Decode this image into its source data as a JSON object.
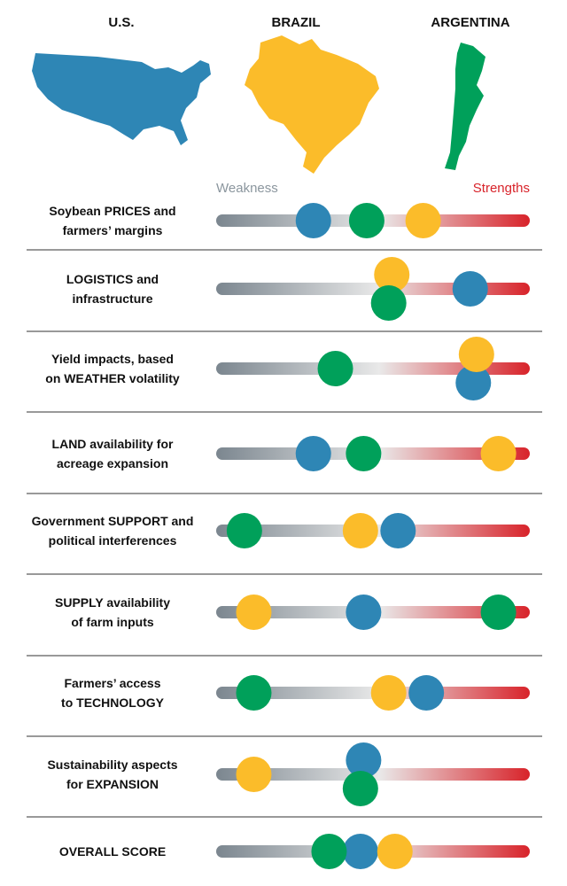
{
  "chart_data": {
    "type": "dot",
    "low_label": "Weakness",
    "high_label": "Strengths",
    "categories": [
      "Soybean PRICES and\nfarmers’ margins",
      "LOGISTICS and\ninfrastructure",
      "Yield impacts, based\non WEATHER volatility",
      "LAND availability for\nacreage expansion",
      "Government SUPPORT and\npolitical interferences",
      "SUPPLY availability\nof farm inputs",
      "Farmers’ access\nto TECHNOLOGY",
      "Sustainability aspects\nfor EXPANSION",
      "OVERALL SCORE"
    ],
    "xlim": [
      0,
      100
    ],
    "series": [
      {
        "name": "U.S.",
        "color": "#2e86b5",
        "values": [
          31,
          81,
          82,
          31,
          58,
          47,
          67,
          47,
          46
        ]
      },
      {
        "name": "BRAZIL",
        "color": "#fbbc2a",
        "values": [
          66,
          56,
          83,
          90,
          46,
          12,
          55,
          12,
          57
        ]
      },
      {
        "name": "ARGENTINA",
        "color": "#00a05a",
        "values": [
          48,
          55,
          38,
          47,
          9,
          90,
          12,
          46,
          36
        ]
      }
    ]
  }
}
